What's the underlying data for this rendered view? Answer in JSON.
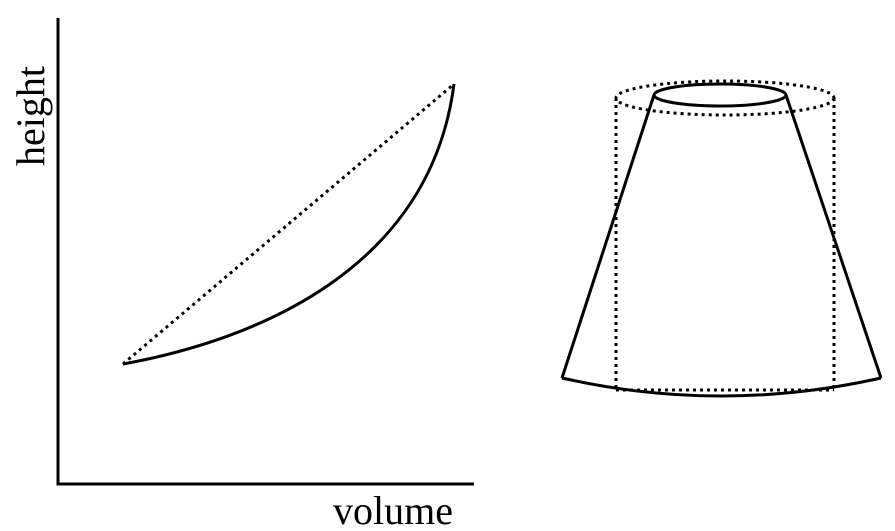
{
  "graph": {
    "x_axis_label": "volume",
    "y_axis_label": "height",
    "curve_style": "solid",
    "chord_style": "dotted"
  },
  "vessel": {
    "shape": "truncated cone (frustum), wide at bottom, narrow at top",
    "comparison_shape": "cylinder",
    "comparison_style": "dotted"
  },
  "colors": {
    "line": "#000000",
    "background": "#ffffff"
  }
}
